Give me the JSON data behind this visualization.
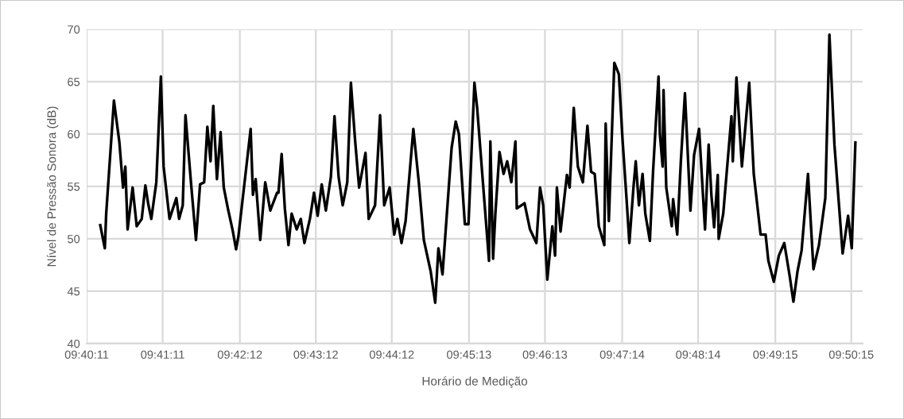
{
  "chart_data": {
    "type": "line",
    "xlabel": "Horário de Medição",
    "ylabel": "Nível de Pressão Sonora (dB)",
    "x": [
      9.6727,
      9.6737,
      9.674,
      9.6757,
      9.6769,
      9.6777,
      9.6782,
      9.6787,
      9.6798,
      9.6807,
      9.6818,
      9.6826,
      9.6832,
      9.6839,
      9.685,
      9.686,
      9.6866,
      9.6879,
      9.6894,
      9.69,
      9.6908,
      9.6914,
      9.6926,
      9.6937,
      9.6946,
      9.6955,
      9.6962,
      9.6969,
      9.6975,
      9.6983,
      9.6991,
      9.6998,
      9.7007,
      9.7018,
      9.7025,
      9.703,
      9.7045,
      9.7057,
      9.7062,
      9.7068,
      9.7078,
      9.7089,
      9.71,
      9.7115,
      9.7118,
      9.7125,
      9.7132,
      9.714,
      9.7147,
      9.7158,
      9.7167,
      9.7175,
      9.7187,
      9.7196,
      9.7204,
      9.7213,
      9.7222,
      9.7233,
      9.7241,
      9.725,
      9.7259,
      9.7269,
      9.7277,
      9.7286,
      9.7295,
      9.7309,
      9.7316,
      9.733,
      9.7341,
      9.735,
      9.7362,
      9.7372,
      9.7379,
      9.7388,
      9.7397,
      9.7414,
      9.7426,
      9.7437,
      9.7452,
      9.7462,
      9.7469,
      9.7478,
      9.7498,
      9.7507,
      9.7514,
      9.7527,
      9.7535,
      9.7548,
      9.7554,
      9.758,
      9.7583,
      9.7589,
      9.7594,
      9.7603,
      9.7612,
      9.762,
      9.7629,
      9.7638,
      9.7641,
      9.7658,
      9.767,
      9.7684,
      9.7692,
      9.7699,
      9.7708,
      9.7719,
      9.7725,
      9.7729,
      9.7737,
      9.7751,
      9.7757,
      9.7766,
      9.7775,
      9.7786,
      9.7796,
      9.7804,
      9.7812,
      9.7821,
      9.7833,
      9.7836,
      9.7843,
      9.7855,
      9.7865,
      9.7873,
      9.7882,
      9.7888,
      9.7897,
      9.7902,
      9.7909,
      9.7917,
      9.7923,
      9.7933,
      9.794,
      9.7952,
      9.7955,
      9.7961,
      9.7963,
      9.7969,
      9.7981,
      9.7984,
      9.7993,
      9.8001,
      9.801,
      9.8022,
      9.803,
      9.8041,
      9.8054,
      9.8062,
      9.8068,
      9.8074,
      9.8082,
      9.8084,
      9.8094,
      9.8112,
      9.8115,
      9.8123,
      9.8135,
      9.8151,
      9.8161,
      9.8176,
      9.8187,
      9.8193,
      9.8205,
      9.8216,
      9.8228,
      9.824,
      9.8248,
      9.8257,
      9.8266,
      9.828,
      9.8292,
      9.8304,
      9.8318,
      9.8327,
      9.8338,
      9.8356,
      9.8368,
      9.8376,
      9.8384
    ],
    "series": [
      {
        "color": "#000000",
        "values": [
          51.3,
          49.1,
          52.4,
          63.2,
          59.2,
          54.9,
          56.9,
          50.9,
          54.9,
          51.2,
          51.9,
          55.1,
          53.4,
          51.9,
          55.4,
          65.5,
          56.9,
          51.9,
          53.9,
          51.9,
          53.2,
          61.8,
          55.4,
          49.9,
          55.2,
          55.4,
          60.7,
          57.4,
          62.7,
          55.7,
          60.2,
          54.9,
          52.9,
          50.7,
          49.0,
          50.2,
          55.9,
          60.5,
          54.2,
          55.7,
          49.9,
          55.4,
          52.7,
          54.4,
          54.4,
          58.1,
          52.9,
          49.4,
          52.4,
          50.9,
          51.9,
          49.6,
          51.9,
          54.4,
          52.2,
          55.2,
          52.7,
          55.9,
          61.7,
          55.9,
          53.2,
          55.4,
          64.9,
          59.5,
          54.9,
          58.2,
          51.9,
          53.2,
          61.8,
          53.2,
          54.9,
          50.4,
          51.9,
          49.6,
          51.7,
          60.5,
          55.4,
          49.9,
          46.9,
          43.9,
          49.1,
          46.6,
          58.7,
          61.2,
          60.0,
          51.4,
          51.4,
          64.9,
          62.5,
          47.9,
          59.3,
          48.1,
          52.4,
          58.3,
          56.2,
          57.4,
          55.4,
          59.3,
          52.9,
          53.4,
          50.9,
          49.6,
          54.9,
          53.2,
          46.1,
          51.2,
          48.4,
          54.9,
          50.7,
          56.1,
          54.9,
          62.5,
          56.9,
          55.4,
          60.8,
          56.4,
          56.2,
          51.2,
          49.4,
          61.0,
          51.7,
          66.8,
          65.7,
          59.5,
          53.7,
          49.6,
          54.9,
          57.4,
          53.2,
          56.2,
          52.4,
          49.8,
          56.4,
          65.5,
          60.0,
          56.9,
          64.2,
          54.9,
          51.2,
          53.8,
          50.4,
          57.4,
          63.9,
          52.7,
          58.0,
          60.5,
          50.9,
          59.0,
          54.2,
          51.1,
          56.1,
          50.0,
          52.4,
          61.7,
          57.4,
          65.4,
          56.9,
          64.9,
          56.2,
          50.4,
          50.4,
          47.9,
          45.9,
          48.4,
          49.6,
          46.4,
          44.0,
          46.9,
          48.9,
          56.2,
          47.1,
          49.4,
          53.9,
          69.5,
          59.0,
          48.6,
          52.2,
          49.1,
          59.2
        ]
      }
    ],
    "xlim": [
      9.669722,
      9.84
    ],
    "xticks": [
      {
        "value": 9.669722,
        "label": "09:40:11"
      },
      {
        "value": 9.686389,
        "label": "09:41:11"
      },
      {
        "value": 9.703333,
        "label": "09:42:12"
      },
      {
        "value": 9.72,
        "label": "09:43:12"
      },
      {
        "value": 9.736667,
        "label": "09:44:12"
      },
      {
        "value": 9.753611,
        "label": "09:45:13"
      },
      {
        "value": 9.770278,
        "label": "09:46:13"
      },
      {
        "value": 9.787222,
        "label": "09:47:14"
      },
      {
        "value": 9.803889,
        "label": "09:48:14"
      },
      {
        "value": 9.820833,
        "label": "09:49:15"
      },
      {
        "value": 9.8375,
        "label": "09:50:15"
      }
    ],
    "ylim": [
      40,
      70
    ],
    "yticks": [
      40,
      45,
      50,
      55,
      60,
      65,
      70
    ],
    "grid": true,
    "marker": "none",
    "line_style": "solid"
  }
}
